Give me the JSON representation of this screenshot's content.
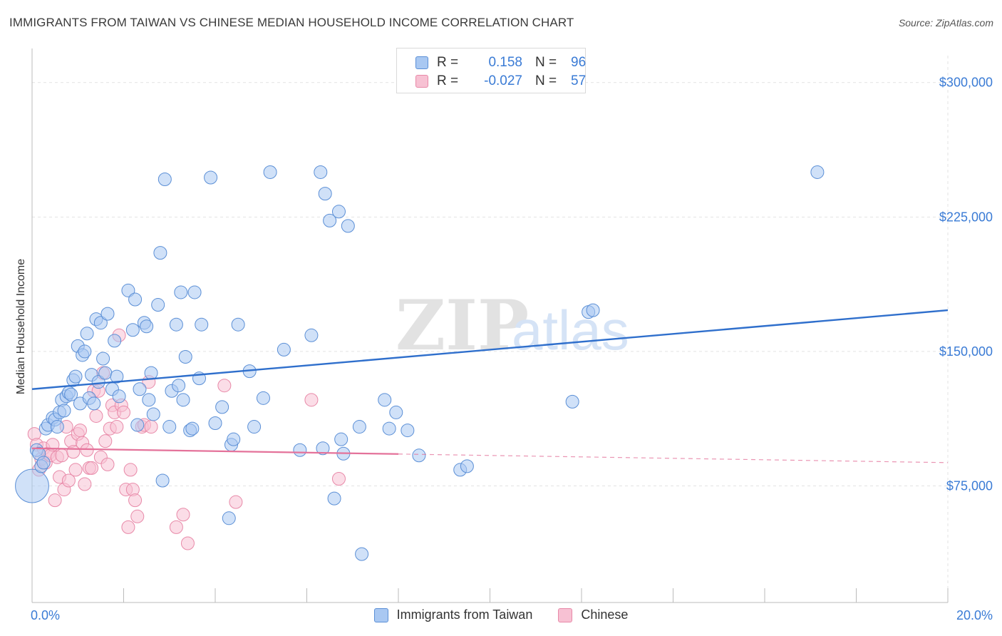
{
  "header": {
    "title": "IMMIGRANTS FROM TAIWAN VS CHINESE MEDIAN HOUSEHOLD INCOME CORRELATION CHART",
    "source": "Source: ZipAtlas.com"
  },
  "watermark": {
    "zip": "ZIP",
    "atlas": "atlas"
  },
  "legend": {
    "rows": [
      {
        "r_label": "R =",
        "r_value": "0.158",
        "n_label": "N =",
        "n_value": "96"
      },
      {
        "r_label": "R =",
        "r_value": "-0.027",
        "n_label": "N =",
        "n_value": "57"
      }
    ]
  },
  "colors": {
    "taiwan_fill": "#a9c8f2",
    "taiwan_stroke": "#5b8fd6",
    "taiwan_line": "#2f6fcc",
    "chinese_fill": "#f7c1d3",
    "chinese_stroke": "#e889a8",
    "chinese_line": "#e4729a",
    "tick_text": "#3a7bd5"
  },
  "chart_data": {
    "type": "scatter",
    "title": "IMMIGRANTS FROM TAIWAN VS CHINESE MEDIAN HOUSEHOLD INCOME CORRELATION CHART",
    "xlabel": "",
    "ylabel": "Median Household Income",
    "xlim": [
      0,
      20
    ],
    "ylim": [
      10000,
      315000
    ],
    "x_tick_labels": [
      "0.0%",
      "20.0%"
    ],
    "y_ticks": [
      {
        "value": 75000,
        "label": "$75,000"
      },
      {
        "value": 150000,
        "label": "$150,000"
      },
      {
        "value": 225000,
        "label": "$225,000"
      },
      {
        "value": 300000,
        "label": "$300,000"
      }
    ],
    "grid": true,
    "legend_position": "top-center",
    "series": [
      {
        "name": "Immigrants from Taiwan",
        "R": 0.158,
        "N": 96,
        "trend": {
          "x": [
            0,
            20
          ],
          "y": [
            129000,
            173000
          ],
          "dashed_from": null
        },
        "points": [
          [
            0.0,
            75000,
            2.6
          ],
          [
            0.1,
            95000,
            1
          ],
          [
            0.15,
            93000,
            1
          ],
          [
            0.2,
            86000,
            1
          ],
          [
            0.25,
            88000,
            1
          ],
          [
            0.3,
            107000,
            1
          ],
          [
            0.35,
            109000,
            1
          ],
          [
            0.45,
            113000,
            1
          ],
          [
            0.5,
            112000,
            1
          ],
          [
            0.55,
            108000,
            1
          ],
          [
            0.6,
            116000,
            1
          ],
          [
            0.65,
            123000,
            1
          ],
          [
            0.7,
            117000,
            1
          ],
          [
            0.75,
            125000,
            1
          ],
          [
            0.8,
            127000,
            1
          ],
          [
            0.85,
            126000,
            1
          ],
          [
            0.9,
            134000,
            1
          ],
          [
            0.95,
            136000,
            1
          ],
          [
            1.0,
            153000,
            1
          ],
          [
            1.05,
            121000,
            1
          ],
          [
            1.1,
            148000,
            1
          ],
          [
            1.15,
            150000,
            1
          ],
          [
            1.2,
            160000,
            1
          ],
          [
            1.25,
            124000,
            1
          ],
          [
            1.3,
            137000,
            1
          ],
          [
            1.35,
            121000,
            1
          ],
          [
            1.4,
            168000,
            1
          ],
          [
            1.45,
            133000,
            1
          ],
          [
            1.5,
            166000,
            1
          ],
          [
            1.55,
            146000,
            1
          ],
          [
            1.6,
            138000,
            1
          ],
          [
            1.65,
            171000,
            1
          ],
          [
            1.75,
            129000,
            1
          ],
          [
            1.8,
            156000,
            1
          ],
          [
            1.85,
            136000,
            1
          ],
          [
            1.9,
            125000,
            1
          ],
          [
            2.1,
            184000,
            1
          ],
          [
            2.2,
            162000,
            1
          ],
          [
            2.25,
            179000,
            1
          ],
          [
            2.3,
            109000,
            1
          ],
          [
            2.35,
            129000,
            1
          ],
          [
            2.45,
            166000,
            1
          ],
          [
            2.5,
            164000,
            1
          ],
          [
            2.55,
            123000,
            1
          ],
          [
            2.6,
            138000,
            1
          ],
          [
            2.65,
            115000,
            1
          ],
          [
            2.75,
            176000,
            1
          ],
          [
            2.8,
            205000,
            1
          ],
          [
            2.85,
            78000,
            1
          ],
          [
            2.9,
            246000,
            1
          ],
          [
            3.0,
            108000,
            1
          ],
          [
            3.05,
            128000,
            1
          ],
          [
            3.15,
            165000,
            1
          ],
          [
            3.2,
            131000,
            1
          ],
          [
            3.25,
            183000,
            1
          ],
          [
            3.3,
            123000,
            1
          ],
          [
            3.35,
            147000,
            1
          ],
          [
            3.45,
            106000,
            1
          ],
          [
            3.5,
            107000,
            1
          ],
          [
            3.55,
            183000,
            1
          ],
          [
            3.65,
            135000,
            1
          ],
          [
            3.7,
            165000,
            1
          ],
          [
            3.9,
            247000,
            1
          ],
          [
            4.0,
            110000,
            1
          ],
          [
            4.15,
            119000,
            1
          ],
          [
            4.3,
            57000,
            1
          ],
          [
            4.35,
            98000,
            1
          ],
          [
            4.4,
            101000,
            1
          ],
          [
            4.5,
            165000,
            1
          ],
          [
            4.75,
            139000,
            1
          ],
          [
            4.85,
            108000,
            1
          ],
          [
            5.05,
            124000,
            1
          ],
          [
            5.2,
            250000,
            1
          ],
          [
            5.5,
            151000,
            1
          ],
          [
            5.85,
            95000,
            1
          ],
          [
            6.1,
            159000,
            1
          ],
          [
            6.3,
            250000,
            1
          ],
          [
            6.35,
            96000,
            1
          ],
          [
            6.4,
            238000,
            1
          ],
          [
            6.5,
            223000,
            1
          ],
          [
            6.6,
            68000,
            1
          ],
          [
            6.7,
            228000,
            1
          ],
          [
            6.75,
            101000,
            1
          ],
          [
            6.8,
            93000,
            1
          ],
          [
            6.9,
            220000,
            1
          ],
          [
            7.15,
            108000,
            1
          ],
          [
            7.2,
            37000,
            1
          ],
          [
            7.7,
            123000,
            1
          ],
          [
            7.8,
            107000,
            1
          ],
          [
            7.95,
            116000,
            1
          ],
          [
            8.2,
            106000,
            1
          ],
          [
            8.45,
            92000,
            1
          ],
          [
            9.35,
            84000,
            1
          ],
          [
            9.5,
            86000,
            1
          ],
          [
            11.8,
            122000,
            1
          ],
          [
            12.15,
            172000,
            1
          ],
          [
            12.25,
            173000,
            1
          ],
          [
            17.15,
            250000,
            1
          ]
        ]
      },
      {
        "name": "Chinese",
        "R": -0.027,
        "N": 57,
        "trend": {
          "x": [
            0,
            20
          ],
          "y": [
            96000,
            88000
          ],
          "dashed_from": 8.0
        },
        "points": [
          [
            0.05,
            104000,
            1
          ],
          [
            0.1,
            98000,
            1
          ],
          [
            0.15,
            84000,
            1
          ],
          [
            0.2,
            90000,
            1
          ],
          [
            0.25,
            96000,
            1
          ],
          [
            0.3,
            88000,
            1
          ],
          [
            0.35,
            93000,
            1
          ],
          [
            0.4,
            92000,
            1
          ],
          [
            0.45,
            98000,
            1
          ],
          [
            0.5,
            67000,
            1
          ],
          [
            0.55,
            91000,
            1
          ],
          [
            0.6,
            80000,
            1
          ],
          [
            0.65,
            92000,
            1
          ],
          [
            0.7,
            73000,
            1
          ],
          [
            0.75,
            108000,
            1
          ],
          [
            0.8,
            78000,
            1
          ],
          [
            0.85,
            100000,
            1
          ],
          [
            0.9,
            94000,
            1
          ],
          [
            0.95,
            84000,
            1
          ],
          [
            1.0,
            104000,
            1
          ],
          [
            1.05,
            106000,
            1
          ],
          [
            1.1,
            99000,
            1
          ],
          [
            1.15,
            76000,
            1
          ],
          [
            1.2,
            95000,
            1
          ],
          [
            1.25,
            85000,
            1
          ],
          [
            1.3,
            85000,
            1
          ],
          [
            1.35,
            128000,
            1
          ],
          [
            1.4,
            114000,
            1
          ],
          [
            1.45,
            128000,
            1
          ],
          [
            1.5,
            91000,
            1
          ],
          [
            1.55,
            138000,
            1
          ],
          [
            1.6,
            100000,
            1
          ],
          [
            1.65,
            87000,
            1
          ],
          [
            1.7,
            107000,
            1
          ],
          [
            1.75,
            120000,
            1
          ],
          [
            1.8,
            116000,
            1
          ],
          [
            1.85,
            108000,
            1
          ],
          [
            1.9,
            159000,
            1
          ],
          [
            1.95,
            120000,
            1
          ],
          [
            2.0,
            116000,
            1
          ],
          [
            2.05,
            73000,
            1
          ],
          [
            2.1,
            52000,
            1
          ],
          [
            2.15,
            84000,
            1
          ],
          [
            2.2,
            73000,
            1
          ],
          [
            2.25,
            67000,
            1
          ],
          [
            2.3,
            58000,
            1
          ],
          [
            2.4,
            108000,
            1
          ],
          [
            2.45,
            109000,
            1
          ],
          [
            2.55,
            133000,
            1
          ],
          [
            2.6,
            108000,
            1
          ],
          [
            3.15,
            52000,
            1
          ],
          [
            3.3,
            59000,
            1
          ],
          [
            3.4,
            43000,
            1
          ],
          [
            4.2,
            131000,
            1
          ],
          [
            4.45,
            66000,
            1
          ],
          [
            6.1,
            123000,
            1
          ],
          [
            6.7,
            79000,
            1
          ]
        ]
      }
    ]
  },
  "bottom_legend": {
    "items": [
      {
        "label": "Immigrants from Taiwan"
      },
      {
        "label": "Chinese"
      }
    ]
  }
}
